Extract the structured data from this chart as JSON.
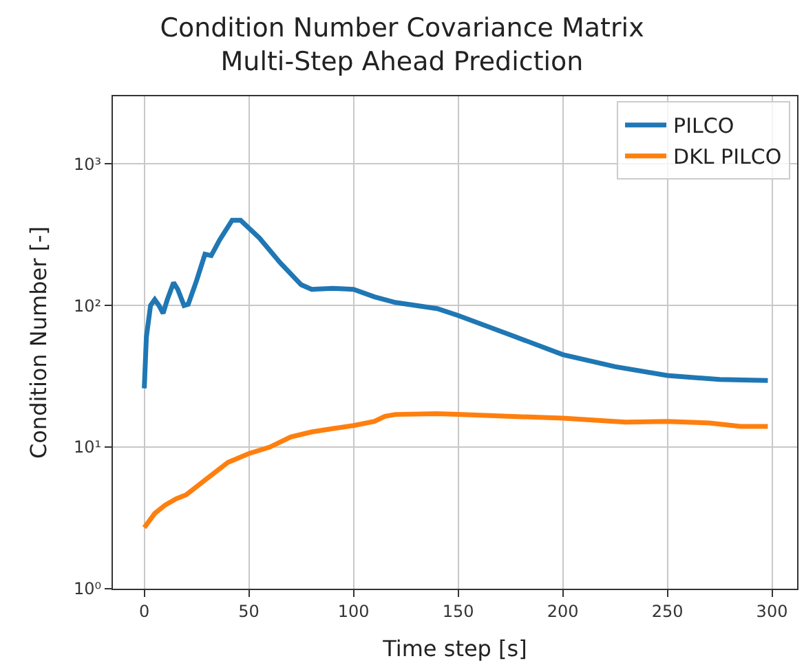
{
  "chart_data": {
    "type": "line",
    "title": "Condition Number Covariance Matrix\nMulti-Step Ahead Prediction",
    "xlabel": "Time step [s]",
    "ylabel": "Condition Number [-]",
    "log": "y",
    "grid": true,
    "legend": "top right",
    "marker": "none",
    "line_style": "solid",
    "xlim": [
      -15,
      312
    ],
    "xticks": [
      0,
      50,
      100,
      150,
      200,
      250,
      300
    ],
    "ylim": [
      1,
      3000
    ],
    "yticks": [
      {
        "value": 1,
        "label": "10⁰"
      },
      {
        "value": 10,
        "label": "10¹"
      },
      {
        "value": 100,
        "label": "10²"
      },
      {
        "value": 1000,
        "label": "10³"
      }
    ],
    "series": [
      {
        "name": "PILCO",
        "color": "#1f77b4",
        "x": [
          0,
          1,
          3,
          5,
          7,
          9,
          11,
          14,
          16,
          19,
          21,
          25,
          29,
          32,
          36,
          42,
          46,
          55,
          65,
          75,
          80,
          90,
          100,
          110,
          120,
          140,
          150,
          175,
          200,
          225,
          250,
          275,
          298
        ],
        "values": [
          26,
          60,
          100,
          110,
          100,
          88,
          110,
          145,
          130,
          100,
          102,
          150,
          230,
          225,
          290,
          400,
          400,
          300,
          200,
          140,
          130,
          132,
          130,
          115,
          105,
          95,
          85,
          62,
          45,
          37,
          32,
          30,
          29.5
        ]
      },
      {
        "name": "DKL PILCO",
        "color": "#ff7f0e",
        "x": [
          0,
          5,
          10,
          15,
          20,
          30,
          40,
          50,
          60,
          70,
          80,
          90,
          100,
          110,
          115,
          120,
          140,
          150,
          200,
          230,
          250,
          270,
          285,
          298
        ],
        "values": [
          2.7,
          3.4,
          3.9,
          4.3,
          4.6,
          6,
          7.8,
          9,
          10,
          11.8,
          12.8,
          13.5,
          14.2,
          15.2,
          16.5,
          17,
          17.2,
          17,
          16,
          15,
          15.2,
          14.8,
          14,
          14
        ]
      }
    ]
  }
}
